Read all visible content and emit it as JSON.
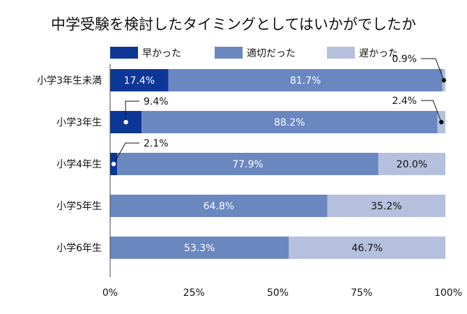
{
  "chart_data": {
    "type": "bar",
    "orientation": "horizontal",
    "stacked": true,
    "title": "中学受験を検討したタイミングとしてはいかがでしたか",
    "categories": [
      "小学3年生未満",
      "小学3年生",
      "小学4年生",
      "小学5年生",
      "小学6年生"
    ],
    "series": [
      {
        "name": "早かった",
        "values": [
          17.4,
          9.4,
          2.1,
          0,
          0
        ],
        "color": "#0d3796"
      },
      {
        "name": "適切だった",
        "values": [
          81.7,
          88.2,
          77.9,
          64.8,
          53.3
        ],
        "color": "#6a87c0"
      },
      {
        "name": "遅かった",
        "values": [
          0.9,
          2.4,
          20.0,
          35.2,
          46.7
        ],
        "color": "#b5c0de"
      }
    ],
    "data_labels": [
      [
        "17.4%",
        "81.7%",
        "0.9%"
      ],
      [
        "9.4%",
        "88.2%",
        "2.4%"
      ],
      [
        "2.1%",
        "77.9%",
        "20.0%"
      ],
      [
        "",
        "64.8%",
        "35.2%"
      ],
      [
        "",
        "53.3%",
        "46.7%"
      ]
    ],
    "xlim": [
      0,
      100
    ],
    "x_ticks": [
      "0%",
      "25%",
      "50%",
      "75%",
      "100%"
    ],
    "legend_position": "top",
    "grid": false
  }
}
